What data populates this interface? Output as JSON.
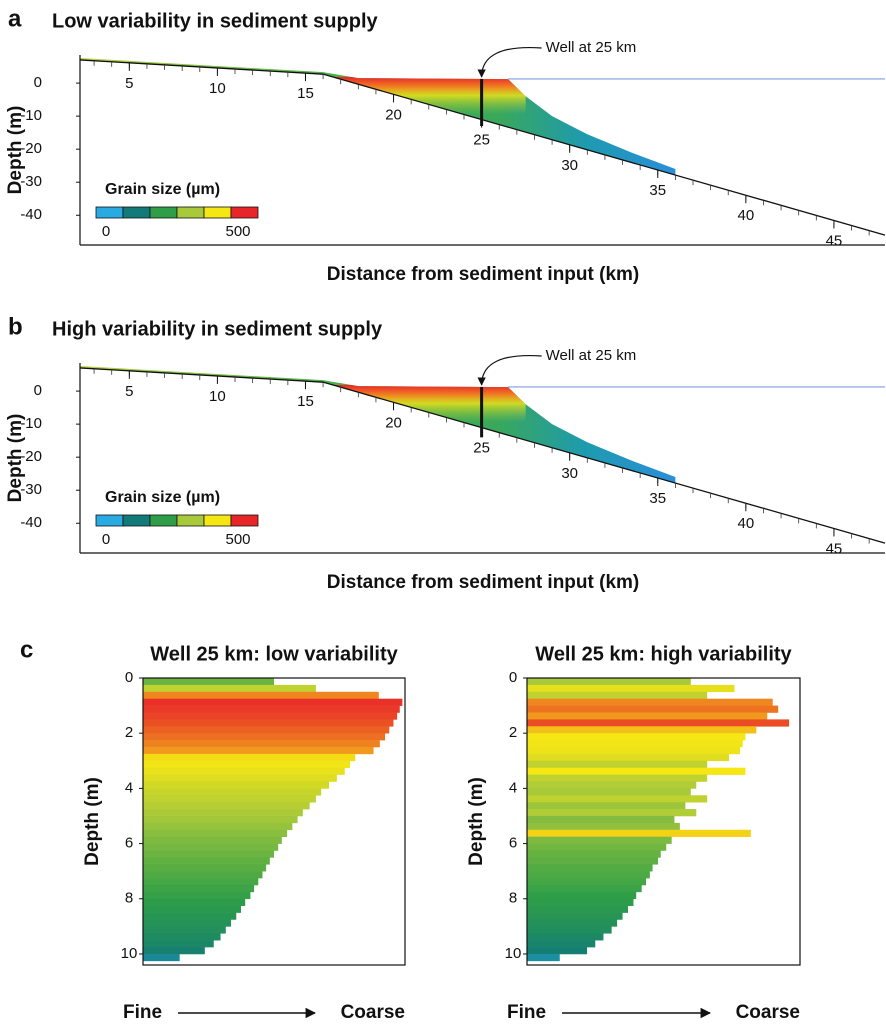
{
  "panels": [
    {
      "letter": "a",
      "title": "Low variability in sediment supply",
      "well_label": "Well at 25 km",
      "well_x": 25,
      "well_depth": -13,
      "ylabel": "Depth (m)",
      "xlabel": "Distance from sediment input (km)",
      "ylim": [
        -49,
        8.5
      ],
      "yticks": [
        0,
        -10,
        -20,
        -30,
        -40
      ],
      "xlim": [
        2.2,
        47.9
      ],
      "xticks": [
        5,
        10,
        15,
        20,
        25,
        30,
        35,
        40,
        45
      ],
      "basement": {
        "x": [
          2.2,
          16,
          47.9
        ],
        "y": [
          7,
          2.7,
          -46
        ]
      },
      "deposit": {
        "x": [
          2.2,
          16,
          18,
          26.5,
          27.5,
          29,
          31,
          33.5,
          36
        ],
        "y": [
          7.6,
          3.3,
          1.5,
          1.2,
          -4,
          -10,
          -15.5,
          -21,
          -26
        ]
      },
      "legend": {
        "title": "Grain size (µm)",
        "ticks": [
          0,
          500
        ],
        "colors": [
          "#29abe2",
          "#127a78",
          "#2e9e48",
          "#a8c93a",
          "#f5e614",
          "#e8262a"
        ]
      }
    },
    {
      "letter": "b",
      "title": "High variability in sediment supply",
      "well_label": "Well at 25 km",
      "well_x": 25,
      "well_depth": -14,
      "ylabel": "Depth (m)",
      "xlabel": "Distance from sediment input (km)",
      "ylim": [
        -49,
        8.5
      ],
      "yticks": [
        0,
        -10,
        -20,
        -30,
        -40
      ],
      "xlim": [
        2.2,
        47.9
      ],
      "xticks": [
        5,
        10,
        15,
        20,
        25,
        30,
        35,
        40,
        45
      ],
      "basement": {
        "x": [
          2.2,
          16,
          47.9
        ],
        "y": [
          7,
          2.7,
          -46
        ]
      },
      "deposit": {
        "x": [
          2.2,
          16,
          18,
          26.5,
          27.5,
          29,
          31,
          33.5,
          36
        ],
        "y": [
          7.6,
          3.3,
          1.5,
          1.2,
          -4,
          -10,
          -15.5,
          -21,
          -26
        ]
      },
      "legend": {
        "title": "Grain size (µm)",
        "ticks": [
          0,
          500
        ],
        "colors": [
          "#29abe2",
          "#127a78",
          "#2e9e48",
          "#a8c93a",
          "#f5e614",
          "#e8262a"
        ]
      }
    }
  ],
  "wells": {
    "letter": "c",
    "ylabel": "Depth (m)",
    "fine": "Fine",
    "coarse": "Coarse",
    "xlim": [
      0,
      500
    ],
    "ylim": [
      0,
      10.4
    ],
    "yticks": [
      0,
      2,
      4,
      6,
      8,
      10
    ],
    "colors": [
      "#29abe2",
      "#127a78",
      "#2e9e48",
      "#a8c93a",
      "#f5e614",
      "#e8262a"
    ],
    "depths": [
      0,
      0.25,
      0.5,
      0.75,
      1,
      1.25,
      1.5,
      1.75,
      2,
      2.25,
      2.5,
      2.75,
      3,
      3.25,
      3.5,
      3.75,
      4,
      4.25,
      4.5,
      4.75,
      5,
      5.25,
      5.5,
      5.75,
      6,
      6.25,
      6.5,
      6.75,
      7,
      7.25,
      7.5,
      7.75,
      8,
      8.25,
      8.5,
      8.75,
      9,
      9.25,
      9.5,
      9.75,
      10
    ],
    "charts": [
      {
        "title": "Well 25 km: low variability",
        "values": [
          250,
          330,
          450,
          495,
          490,
          485,
          478,
          470,
          462,
          452,
          440,
          405,
          395,
          385,
          370,
          355,
          340,
          330,
          318,
          305,
          295,
          285,
          275,
          265,
          258,
          250,
          242,
          235,
          228,
          220,
          212,
          205,
          195,
          187,
          178,
          168,
          158,
          148,
          135,
          118,
          70
        ]
      },
      {
        "title": "Well 25 km: high variability",
        "values": [
          300,
          380,
          330,
          450,
          460,
          440,
          480,
          420,
          400,
          395,
          390,
          370,
          330,
          400,
          330,
          310,
          300,
          330,
          290,
          310,
          270,
          280,
          410,
          265,
          255,
          245,
          240,
          230,
          225,
          218,
          210,
          200,
          195,
          185,
          175,
          165,
          155,
          140,
          125,
          110,
          60
        ]
      }
    ]
  }
}
